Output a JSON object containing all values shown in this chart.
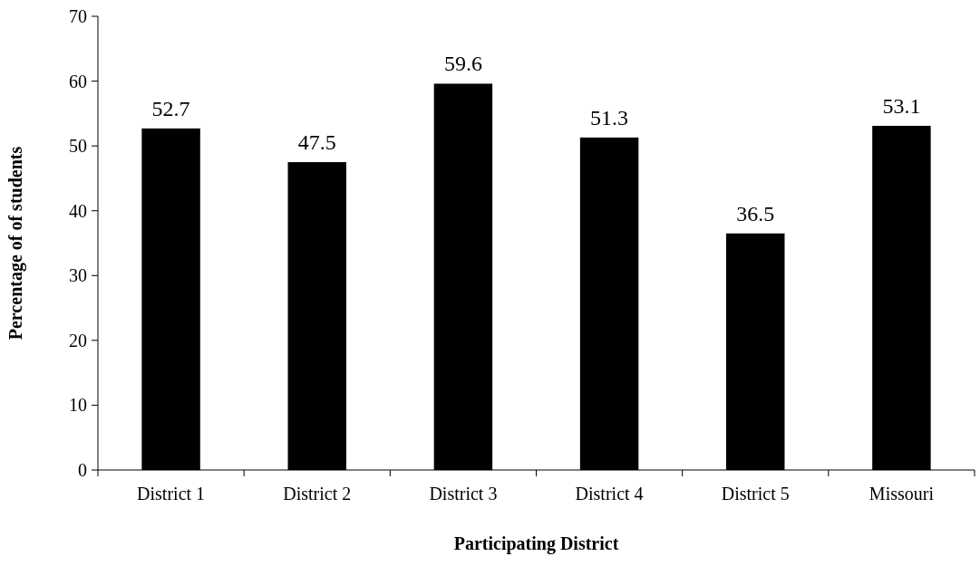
{
  "chart_data": {
    "type": "bar",
    "xlabel": "Participating District",
    "ylabel": "Percentage of of students",
    "categories": [
      "District 1",
      "District 2",
      "District 3",
      "District 4",
      "District 5",
      "Missouri"
    ],
    "values": [
      52.7,
      47.5,
      59.6,
      51.3,
      36.5,
      53.1
    ],
    "color": "#000000",
    "ylim": [
      0,
      70
    ],
    "yticks": [
      0,
      10,
      20,
      30,
      40,
      50,
      60,
      70
    ],
    "data_labels": true,
    "grid": false
  }
}
